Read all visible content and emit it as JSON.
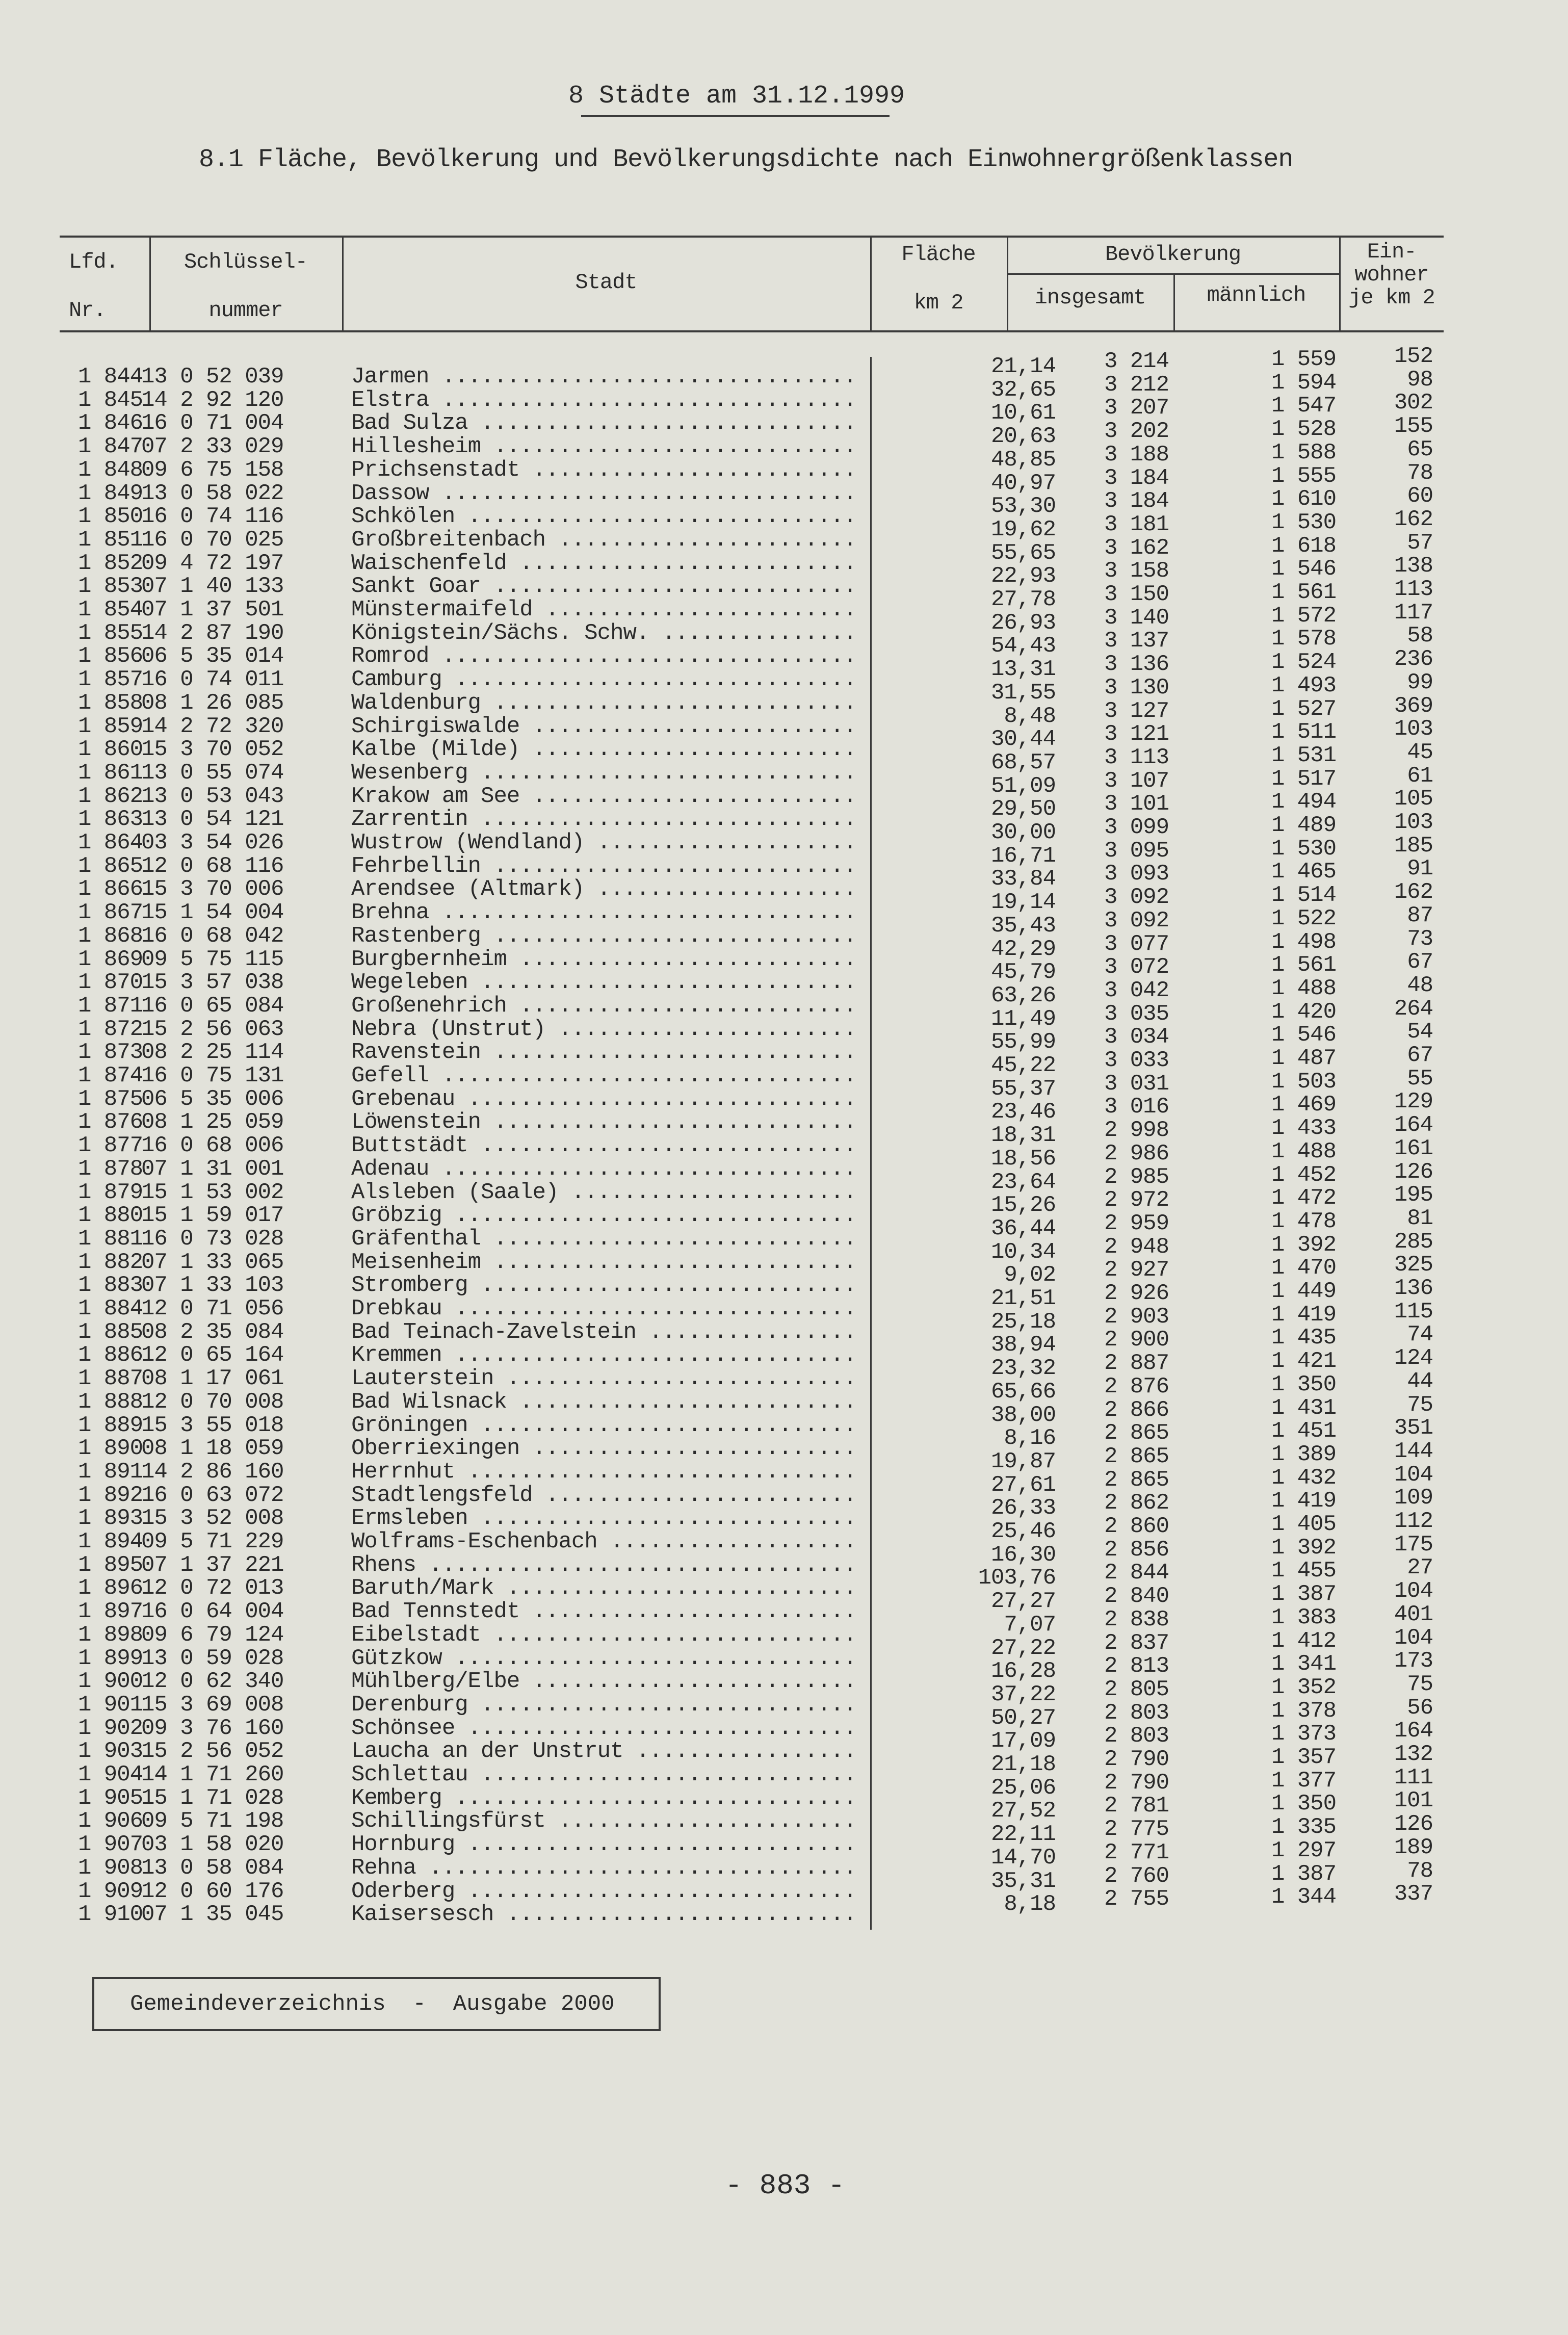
{
  "page": {
    "title": "8 Städte am 31.12.1999",
    "subtitle": "8.1 Fläche, Bevölkerung und Bevölkerungsdichte nach Einwohnergrößenklassen",
    "footer_label": "Gemeindeverzeichnis  -  Ausgabe 2000",
    "page_number": "- 883 -"
  },
  "table": {
    "headers": {
      "lfd_1": "Lfd.",
      "lfd_2": "Nr.",
      "key_1": "Schlüssel-",
      "key_2": "nummer",
      "stadt": "Stadt",
      "flaeche_1": "Fläche",
      "flaeche_2": "km 2",
      "bevoelkerung": "Bevölkerung",
      "insgesamt": "insgesamt",
      "maennlich": "männlich",
      "dichte_1": "Ein-",
      "dichte_2": "wohner",
      "dichte_3": "je km 2"
    },
    "rows": [
      [
        "1 844",
        "13 0 52 039",
        "Jarmen",
        "21,14",
        "3 214",
        "1 559",
        "152"
      ],
      [
        "1 845",
        "14 2 92 120",
        "Elstra",
        "32,65",
        "3 212",
        "1 594",
        "98"
      ],
      [
        "1 846",
        "16 0 71 004",
        "Bad Sulza",
        "10,61",
        "3 207",
        "1 547",
        "302"
      ],
      [
        "1 847",
        "07 2 33 029",
        "Hillesheim",
        "20,63",
        "3 202",
        "1 528",
        "155"
      ],
      [
        "1 848",
        "09 6 75 158",
        "Prichsenstadt",
        "48,85",
        "3 188",
        "1 588",
        "65"
      ],
      [
        "1 849",
        "13 0 58 022",
        "Dassow",
        "40,97",
        "3 184",
        "1 555",
        "78"
      ],
      [
        "1 850",
        "16 0 74 116",
        "Schkölen",
        "53,30",
        "3 184",
        "1 610",
        "60"
      ],
      [
        "1 851",
        "16 0 70 025",
        "Großbreitenbach",
        "19,62",
        "3 181",
        "1 530",
        "162"
      ],
      [
        "1 852",
        "09 4 72 197",
        "Waischenfeld",
        "55,65",
        "3 162",
        "1 618",
        "57"
      ],
      [
        "1 853",
        "07 1 40 133",
        "Sankt Goar",
        "22,93",
        "3 158",
        "1 546",
        "138"
      ],
      [
        "1 854",
        "07 1 37 501",
        "Münstermaifeld",
        "27,78",
        "3 150",
        "1 561",
        "113"
      ],
      [
        "1 855",
        "14 2 87 190",
        "Königstein/Sächs. Schw.",
        "26,93",
        "3 140",
        "1 572",
        "117"
      ],
      [
        "1 856",
        "06 5 35 014",
        "Romrod",
        "54,43",
        "3 137",
        "1 578",
        "58"
      ],
      [
        "1 857",
        "16 0 74 011",
        "Camburg",
        "13,31",
        "3 136",
        "1 524",
        "236"
      ],
      [
        "1 858",
        "08 1 26 085",
        "Waldenburg",
        "31,55",
        "3 130",
        "1 493",
        "99"
      ],
      [
        "1 859",
        "14 2 72 320",
        "Schirgiswalde",
        "8,48",
        "3 127",
        "1 527",
        "369"
      ],
      [
        "1 860",
        "15 3 70 052",
        "Kalbe (Milde)",
        "30,44",
        "3 121",
        "1 511",
        "103"
      ],
      [
        "1 861",
        "13 0 55 074",
        "Wesenberg",
        "68,57",
        "3 113",
        "1 531",
        "45"
      ],
      [
        "1 862",
        "13 0 53 043",
        "Krakow am See",
        "51,09",
        "3 107",
        "1 517",
        "61"
      ],
      [
        "1 863",
        "13 0 54 121",
        "Zarrentin",
        "29,50",
        "3 101",
        "1 494",
        "105"
      ],
      [
        "1 864",
        "03 3 54 026",
        "Wustrow (Wendland)",
        "30,00",
        "3 099",
        "1 489",
        "103"
      ],
      [
        "1 865",
        "12 0 68 116",
        "Fehrbellin",
        "16,71",
        "3 095",
        "1 530",
        "185"
      ],
      [
        "1 866",
        "15 3 70 006",
        "Arendsee (Altmark)",
        "33,84",
        "3 093",
        "1 465",
        "91"
      ],
      [
        "1 867",
        "15 1 54 004",
        "Brehna",
        "19,14",
        "3 092",
        "1 514",
        "162"
      ],
      [
        "1 868",
        "16 0 68 042",
        "Rastenberg",
        "35,43",
        "3 092",
        "1 522",
        "87"
      ],
      [
        "1 869",
        "09 5 75 115",
        "Burgbernheim",
        "42,29",
        "3 077",
        "1 498",
        "73"
      ],
      [
        "1 870",
        "15 3 57 038",
        "Wegeleben",
        "45,79",
        "3 072",
        "1 561",
        "67"
      ],
      [
        "1 871",
        "16 0 65 084",
        "Großenehrich",
        "63,26",
        "3 042",
        "1 488",
        "48"
      ],
      [
        "1 872",
        "15 2 56 063",
        "Nebra (Unstrut)",
        "11,49",
        "3 035",
        "1 420",
        "264"
      ],
      [
        "1 873",
        "08 2 25 114",
        "Ravenstein",
        "55,99",
        "3 034",
        "1 546",
        "54"
      ],
      [
        "1 874",
        "16 0 75 131",
        "Gefell",
        "45,22",
        "3 033",
        "1 487",
        "67"
      ],
      [
        "1 875",
        "06 5 35 006",
        "Grebenau",
        "55,37",
        "3 031",
        "1 503",
        "55"
      ],
      [
        "1 876",
        "08 1 25 059",
        "Löwenstein",
        "23,46",
        "3 016",
        "1 469",
        "129"
      ],
      [
        "1 877",
        "16 0 68 006",
        "Buttstädt",
        "18,31",
        "2 998",
        "1 433",
        "164"
      ],
      [
        "1 878",
        "07 1 31 001",
        "Adenau",
        "18,56",
        "2 986",
        "1 488",
        "161"
      ],
      [
        "1 879",
        "15 1 53 002",
        "Alsleben (Saale)",
        "23,64",
        "2 985",
        "1 452",
        "126"
      ],
      [
        "1 880",
        "15 1 59 017",
        "Gröbzig",
        "15,26",
        "2 972",
        "1 472",
        "195"
      ],
      [
        "1 881",
        "16 0 73 028",
        "Gräfenthal",
        "36,44",
        "2 959",
        "1 478",
        "81"
      ],
      [
        "1 882",
        "07 1 33 065",
        "Meisenheim",
        "10,34",
        "2 948",
        "1 392",
        "285"
      ],
      [
        "1 883",
        "07 1 33 103",
        "Stromberg",
        "9,02",
        "2 927",
        "1 470",
        "325"
      ],
      [
        "1 884",
        "12 0 71 056",
        "Drebkau",
        "21,51",
        "2 926",
        "1 449",
        "136"
      ],
      [
        "1 885",
        "08 2 35 084",
        "Bad Teinach-Zavelstein",
        "25,18",
        "2 903",
        "1 419",
        "115"
      ],
      [
        "1 886",
        "12 0 65 164",
        "Kremmen",
        "38,94",
        "2 900",
        "1 435",
        "74"
      ],
      [
        "1 887",
        "08 1 17 061",
        "Lauterstein",
        "23,32",
        "2 887",
        "1 421",
        "124"
      ],
      [
        "1 888",
        "12 0 70 008",
        "Bad Wilsnack",
        "65,66",
        "2 876",
        "1 350",
        "44"
      ],
      [
        "1 889",
        "15 3 55 018",
        "Gröningen",
        "38,00",
        "2 866",
        "1 431",
        "75"
      ],
      [
        "1 890",
        "08 1 18 059",
        "Oberriexingen",
        "8,16",
        "2 865",
        "1 451",
        "351"
      ],
      [
        "1 891",
        "14 2 86 160",
        "Herrnhut",
        "19,87",
        "2 865",
        "1 389",
        "144"
      ],
      [
        "1 892",
        "16 0 63 072",
        "Stadtlengsfeld",
        "27,61",
        "2 865",
        "1 432",
        "104"
      ],
      [
        "1 893",
        "15 3 52 008",
        "Ermsleben",
        "26,33",
        "2 862",
        "1 419",
        "109"
      ],
      [
        "1 894",
        "09 5 71 229",
        "Wolframs-Eschenbach",
        "25,46",
        "2 860",
        "1 405",
        "112"
      ],
      [
        "1 895",
        "07 1 37 221",
        "Rhens",
        "16,30",
        "2 856",
        "1 392",
        "175"
      ],
      [
        "1 896",
        "12 0 72 013",
        "Baruth/Mark",
        "103,76",
        "2 844",
        "1 455",
        "27"
      ],
      [
        "1 897",
        "16 0 64 004",
        "Bad Tennstedt",
        "27,27",
        "2 840",
        "1 387",
        "104"
      ],
      [
        "1 898",
        "09 6 79 124",
        "Eibelstadt",
        "7,07",
        "2 838",
        "1 383",
        "401"
      ],
      [
        "1 899",
        "13 0 59 028",
        "Gützkow",
        "27,22",
        "2 837",
        "1 412",
        "104"
      ],
      [
        "1 900",
        "12 0 62 340",
        "Mühlberg/Elbe",
        "16,28",
        "2 813",
        "1 341",
        "173"
      ],
      [
        "1 901",
        "15 3 69 008",
        "Derenburg",
        "37,22",
        "2 805",
        "1 352",
        "75"
      ],
      [
        "1 902",
        "09 3 76 160",
        "Schönsee",
        "50,27",
        "2 803",
        "1 378",
        "56"
      ],
      [
        "1 903",
        "15 2 56 052",
        "Laucha an der Unstrut",
        "17,09",
        "2 803",
        "1 373",
        "164"
      ],
      [
        "1 904",
        "14 1 71 260",
        "Schlettau",
        "21,18",
        "2 790",
        "1 357",
        "132"
      ],
      [
        "1 905",
        "15 1 71 028",
        "Kemberg",
        "25,06",
        "2 790",
        "1 377",
        "111"
      ],
      [
        "1 906",
        "09 5 71 198",
        "Schillingsfürst",
        "27,52",
        "2 781",
        "1 350",
        "101"
      ],
      [
        "1 907",
        "03 1 58 020",
        "Hornburg",
        "22,11",
        "2 775",
        "1 335",
        "126"
      ],
      [
        "1 908",
        "13 0 58 084",
        "Rehna",
        "14,70",
        "2 771",
        "1 297",
        "189"
      ],
      [
        "1 909",
        "12 0 60 176",
        "Oderberg",
        "35,31",
        "2 760",
        "1 387",
        "78"
      ],
      [
        "1 910",
        "07 1 35 045",
        "Kaisersesch",
        "8,18",
        "2 755",
        "1 344",
        "337"
      ]
    ]
  }
}
